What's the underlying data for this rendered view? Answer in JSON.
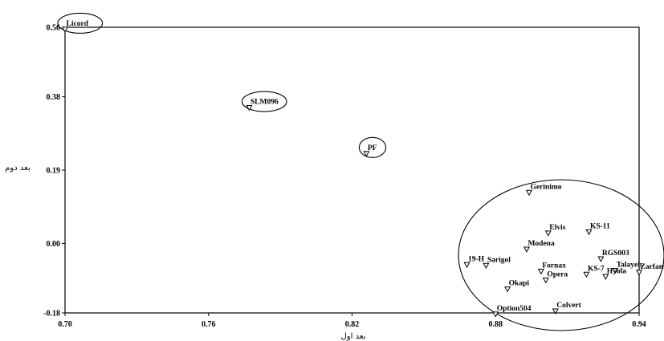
{
  "chart_data": {
    "type": "scatter",
    "title": "",
    "xlabel": "بعد اول",
    "ylabel": "بعد دوم",
    "xlim": [
      0.7,
      0.94
    ],
    "ylim": [
      -0.18,
      0.56
    ],
    "x_ticks": [
      "0.70",
      "0.76",
      "0.82",
      "0.88",
      "0.94"
    ],
    "y_ticks": [
      "0.56",
      "0.38",
      "0.19",
      "0.00",
      "-0.18"
    ],
    "grid": false,
    "marker": "triangle-down",
    "points": [
      {
        "label": "Licord",
        "x": 0.7,
        "y": 0.555
      },
      {
        "label": "SLM096",
        "x": 0.777,
        "y": 0.352
      },
      {
        "label": "PF",
        "x": 0.826,
        "y": 0.233
      },
      {
        "label": "Gerinimo",
        "x": 0.894,
        "y": 0.132
      },
      {
        "label": "Elvis",
        "x": 0.902,
        "y": 0.027
      },
      {
        "label": "KS-11",
        "x": 0.919,
        "y": 0.03
      },
      {
        "label": "Modena",
        "x": 0.893,
        "y": -0.015
      },
      {
        "label": "RGS003",
        "x": 0.924,
        "y": -0.04
      },
      {
        "label": "19-H",
        "x": 0.868,
        "y": -0.055
      },
      {
        "label": "Sarigol",
        "x": 0.876,
        "y": -0.057
      },
      {
        "label": "Fornax",
        "x": 0.899,
        "y": -0.072
      },
      {
        "label": "Opera",
        "x": 0.901,
        "y": -0.095
      },
      {
        "label": "KS-7",
        "x": 0.918,
        "y": -0.08
      },
      {
        "label": "Okapi",
        "x": 0.885,
        "y": -0.118
      },
      {
        "label": "Zarfam",
        "x": 0.94,
        "y": -0.075
      },
      {
        "label": "Talayeh",
        "x": 0.93,
        "y": -0.07
      },
      {
        "label": "Hyola",
        "x": 0.926,
        "y": -0.086
      },
      {
        "label": "Option504",
        "x": 0.88,
        "y": -0.183
      },
      {
        "label": "Colvert",
        "x": 0.905,
        "y": -0.175
      }
    ],
    "highlighted": [
      "Licord",
      "SLM096",
      "PF"
    ],
    "cluster_ellipse": true
  }
}
